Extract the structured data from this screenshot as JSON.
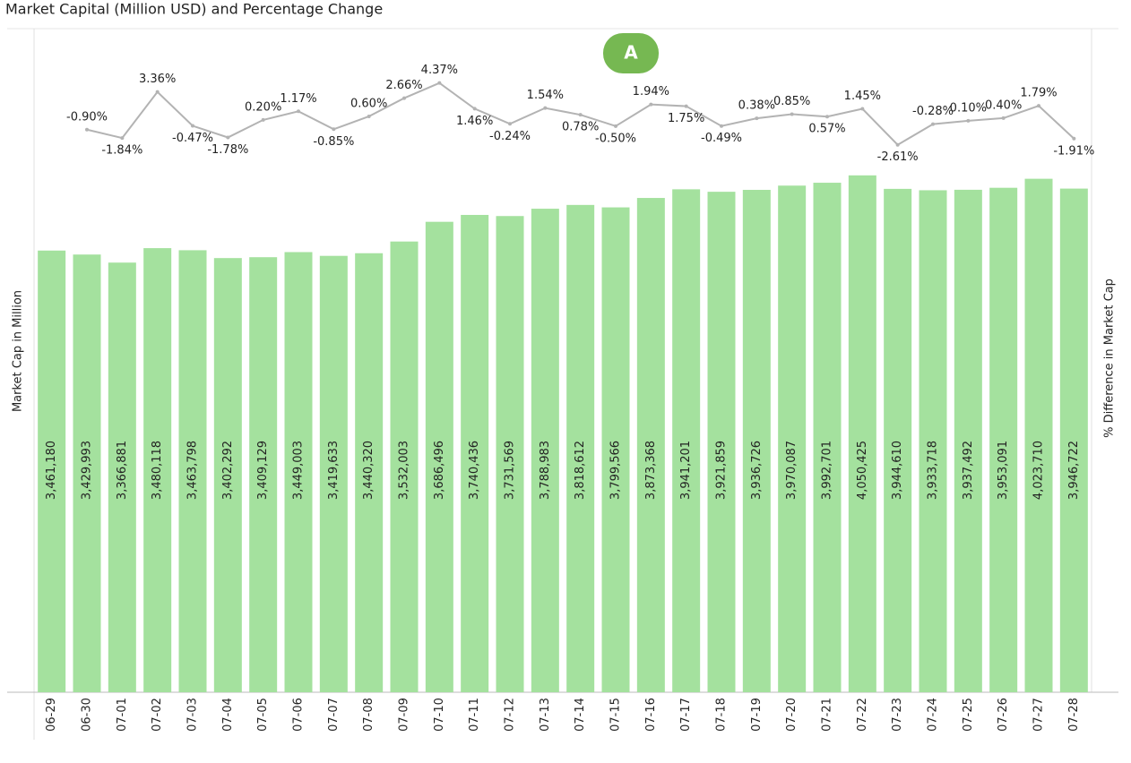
{
  "badge": "A",
  "chart_data": {
    "type": "bar-line",
    "title": "Market Capital (Million USD) and Percentage Change",
    "y_label": "Market Cap in Million",
    "y2_label": "% Difference in Market Cap",
    "categories": [
      "06-29",
      "06-30",
      "07-01",
      "07-02",
      "07-03",
      "07-04",
      "07-05",
      "07-06",
      "07-07",
      "07-08",
      "07-09",
      "07-10",
      "07-11",
      "07-12",
      "07-13",
      "07-14",
      "07-15",
      "07-16",
      "07-17",
      "07-18",
      "07-19",
      "07-20",
      "07-21",
      "07-22",
      "07-23",
      "07-24",
      "07-25",
      "07-26",
      "07-27",
      "07-28"
    ],
    "ylim": [
      0,
      5200000
    ],
    "y2lim": [
      -64.4,
      10.5
    ],
    "series": [
      {
        "name": "Market Cap",
        "color": "#a4e19e",
        "values": [
          3461180,
          3429993,
          3366881,
          3480118,
          3463798,
          3402292,
          3409129,
          3449003,
          3419633,
          3440320,
          3532003,
          3686496,
          3740436,
          3731569,
          3788983,
          3818612,
          3799566,
          3873368,
          3941201,
          3921859,
          3936726,
          3970087,
          3992701,
          4050425,
          3944610,
          3933718,
          3937492,
          3953091,
          4023710,
          3946722
        ],
        "value_labels": [
          "3,461,180",
          "3,429,993",
          "3,366,881",
          "3,480,118",
          "3,463,798",
          "3,402,292",
          "3,409,129",
          "3,449,003",
          "3,419,633",
          "3,440,320",
          "3,532,003",
          "3,686,496",
          "3,740,436",
          "3,731,569",
          "3,788,983",
          "3,818,612",
          "3,799,566",
          "3,873,368",
          "3,941,201",
          "3,921,859",
          "3,936,726",
          "3,970,087",
          "3,992,701",
          "4,050,425",
          "3,944,610",
          "3,933,718",
          "3,937,492",
          "3,953,091",
          "4,023,710",
          "3,946,722"
        ]
      },
      {
        "name": "% Difference",
        "color": "#b3b3b3",
        "axis": "y2",
        "values": [
          null,
          -0.9,
          -1.84,
          3.36,
          -0.47,
          -1.78,
          0.2,
          1.17,
          -0.85,
          0.6,
          2.66,
          4.37,
          1.46,
          -0.24,
          1.54,
          0.78,
          -0.5,
          1.94,
          1.75,
          -0.49,
          0.38,
          0.85,
          0.57,
          1.45,
          -2.61,
          -0.28,
          0.1,
          0.4,
          1.79,
          -1.91
        ],
        "value_labels": [
          null,
          "-0.90%",
          "-1.84%",
          "3.36%",
          "-0.47%",
          "-1.78%",
          "0.20%",
          "1.17%",
          "-0.85%",
          "0.60%",
          "2.66%",
          "4.37%",
          "1.46%",
          "-0.24%",
          "1.54%",
          "0.78%",
          "-0.50%",
          "1.94%",
          "1.75%",
          "-0.49%",
          "0.38%",
          "0.85%",
          "0.57%",
          "1.45%",
          "-2.61%",
          "-0.28%",
          "0.10%",
          "0.40%",
          "1.79%",
          "-1.91%"
        ]
      }
    ]
  }
}
